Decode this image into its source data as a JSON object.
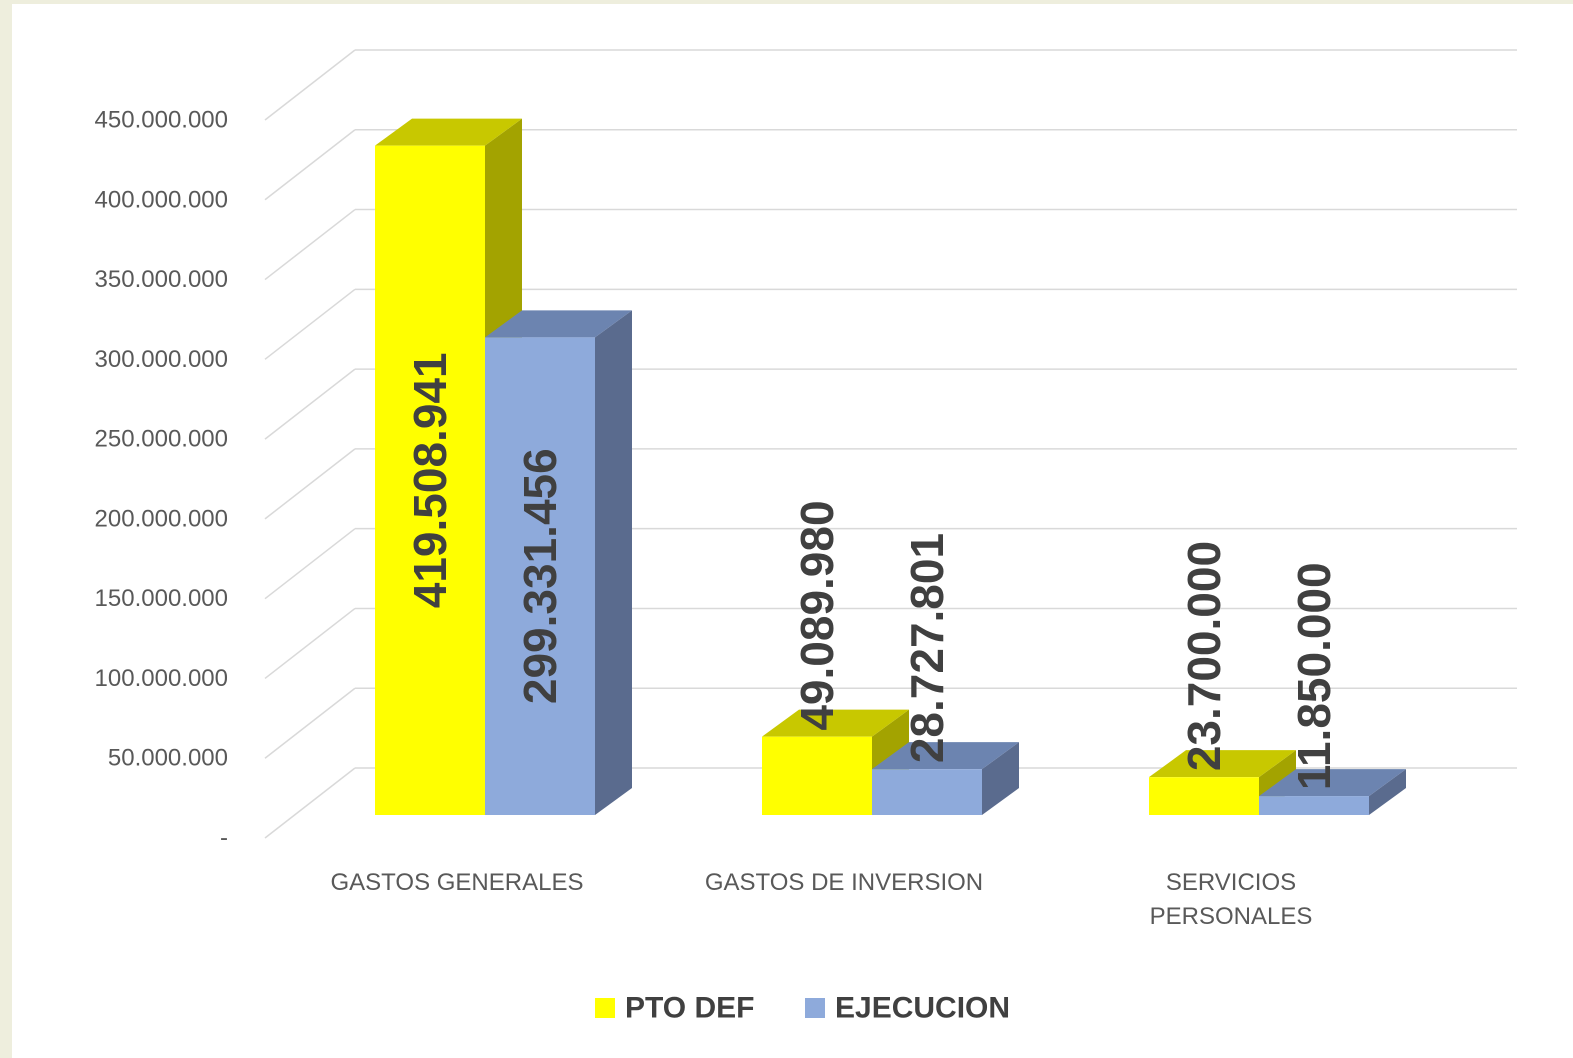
{
  "chart_data": {
    "type": "bar3d",
    "categories": [
      "GASTOS GENERALES",
      "GASTOS DE INVERSION",
      "SERVICIOS PERSONALES"
    ],
    "series": [
      {
        "name": "PTO DEF",
        "color": "#ffff00",
        "top": "#c8c800",
        "side": "#a3a300",
        "values": [
          419508941,
          49089980,
          23700000
        ],
        "value_labels": [
          "419.508.941",
          "49.089.980",
          "23.700.000"
        ]
      },
      {
        "name": "EJECUCION",
        "color": "#8eaadb",
        "top": "#6c84b0",
        "side": "#5a6b8e",
        "values": [
          299331456,
          28727801,
          11850000
        ],
        "value_labels": [
          "299.331.456",
          "28.727.801",
          "11.850.000"
        ]
      }
    ],
    "ylim": [
      0,
      450000000
    ],
    "yticks": [
      {
        "value": 0,
        "label": "-"
      },
      {
        "value": 50000000,
        "label": "50.000.000"
      },
      {
        "value": 100000000,
        "label": "100.000.000"
      },
      {
        "value": 150000000,
        "label": "150.000.000"
      },
      {
        "value": 200000000,
        "label": "200.000.000"
      },
      {
        "value": 250000000,
        "label": "250.000.000"
      },
      {
        "value": 300000000,
        "label": "300.000.000"
      },
      {
        "value": 350000000,
        "label": "350.000.000"
      },
      {
        "value": 400000000,
        "label": "400.000.000"
      },
      {
        "value": 450000000,
        "label": "450.000.000"
      }
    ],
    "grid": true,
    "legend": "bottom"
  }
}
